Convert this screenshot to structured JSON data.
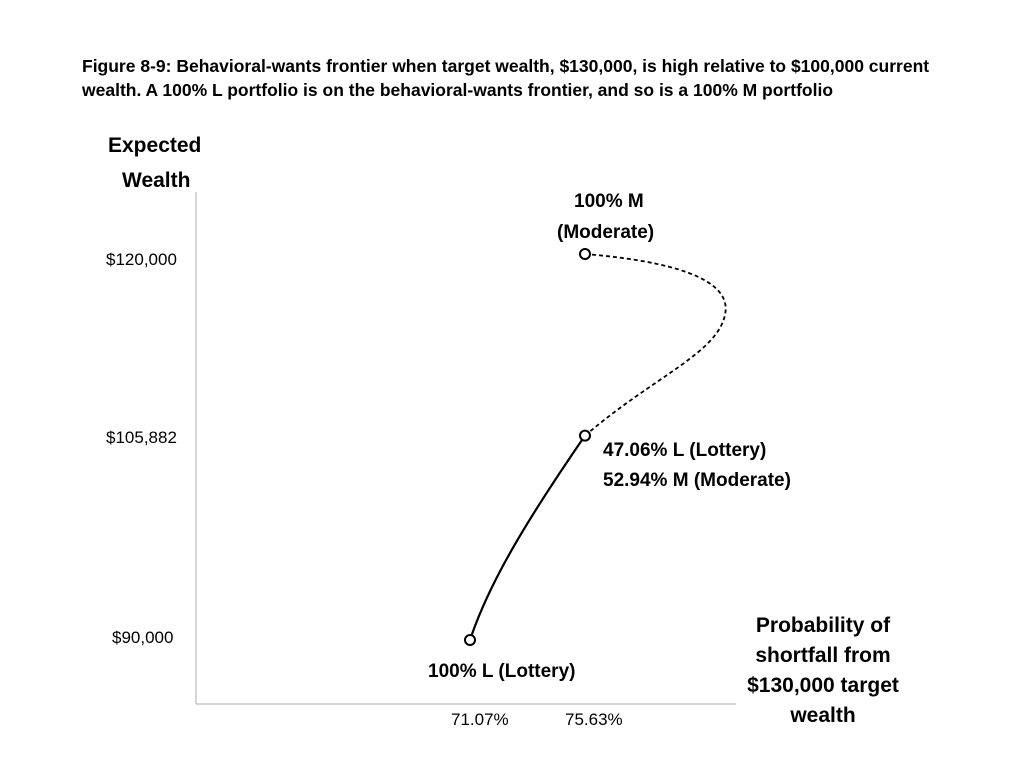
{
  "title": "Figure 8-9: Behavioral-wants frontier when target wealth, $130,000, is high relative to $100,000 current wealth. A 100% L portfolio is on the behavioral-wants frontier, and so is a 100% M portfolio",
  "chart_data": {
    "type": "line",
    "ylabel_lines": [
      "Expected",
      "Wealth"
    ],
    "xlabel_lines": [
      "Probability of",
      "shortfall from",
      "$130,000 target",
      "wealth"
    ],
    "y_ticks": [
      {
        "value": 120000,
        "label": "$120,000"
      },
      {
        "value": 105882,
        "label": "$105,882"
      },
      {
        "value": 90000,
        "label": "$90,000"
      }
    ],
    "x_ticks": [
      {
        "value": 71.07,
        "label": "71.07%"
      },
      {
        "value": 75.63,
        "label": "75.63%"
      }
    ],
    "points": [
      {
        "name": "100% L",
        "x": 71.07,
        "y": 90000,
        "label_lines": [
          "100% L (Lottery)"
        ]
      },
      {
        "name": "mix",
        "x": 75.63,
        "y": 105882,
        "label_lines": [
          "47.06% L (Lottery)",
          "52.94% M (Moderate)"
        ]
      },
      {
        "name": "100% M",
        "x": 75.63,
        "y": 120000,
        "label_lines": [
          "100% M",
          "(Moderate)"
        ]
      }
    ],
    "series": [
      {
        "style": "solid",
        "points": [
          {
            "x": 71.07,
            "y": 90000
          },
          {
            "x": 75.63,
            "y": 105882
          }
        ]
      },
      {
        "style": "dashed",
        "points": [
          {
            "x": 75.63,
            "y": 105882
          },
          {
            "x": 81.2,
            "y": 115500
          },
          {
            "x": 75.63,
            "y": 120000
          }
        ]
      }
    ]
  }
}
